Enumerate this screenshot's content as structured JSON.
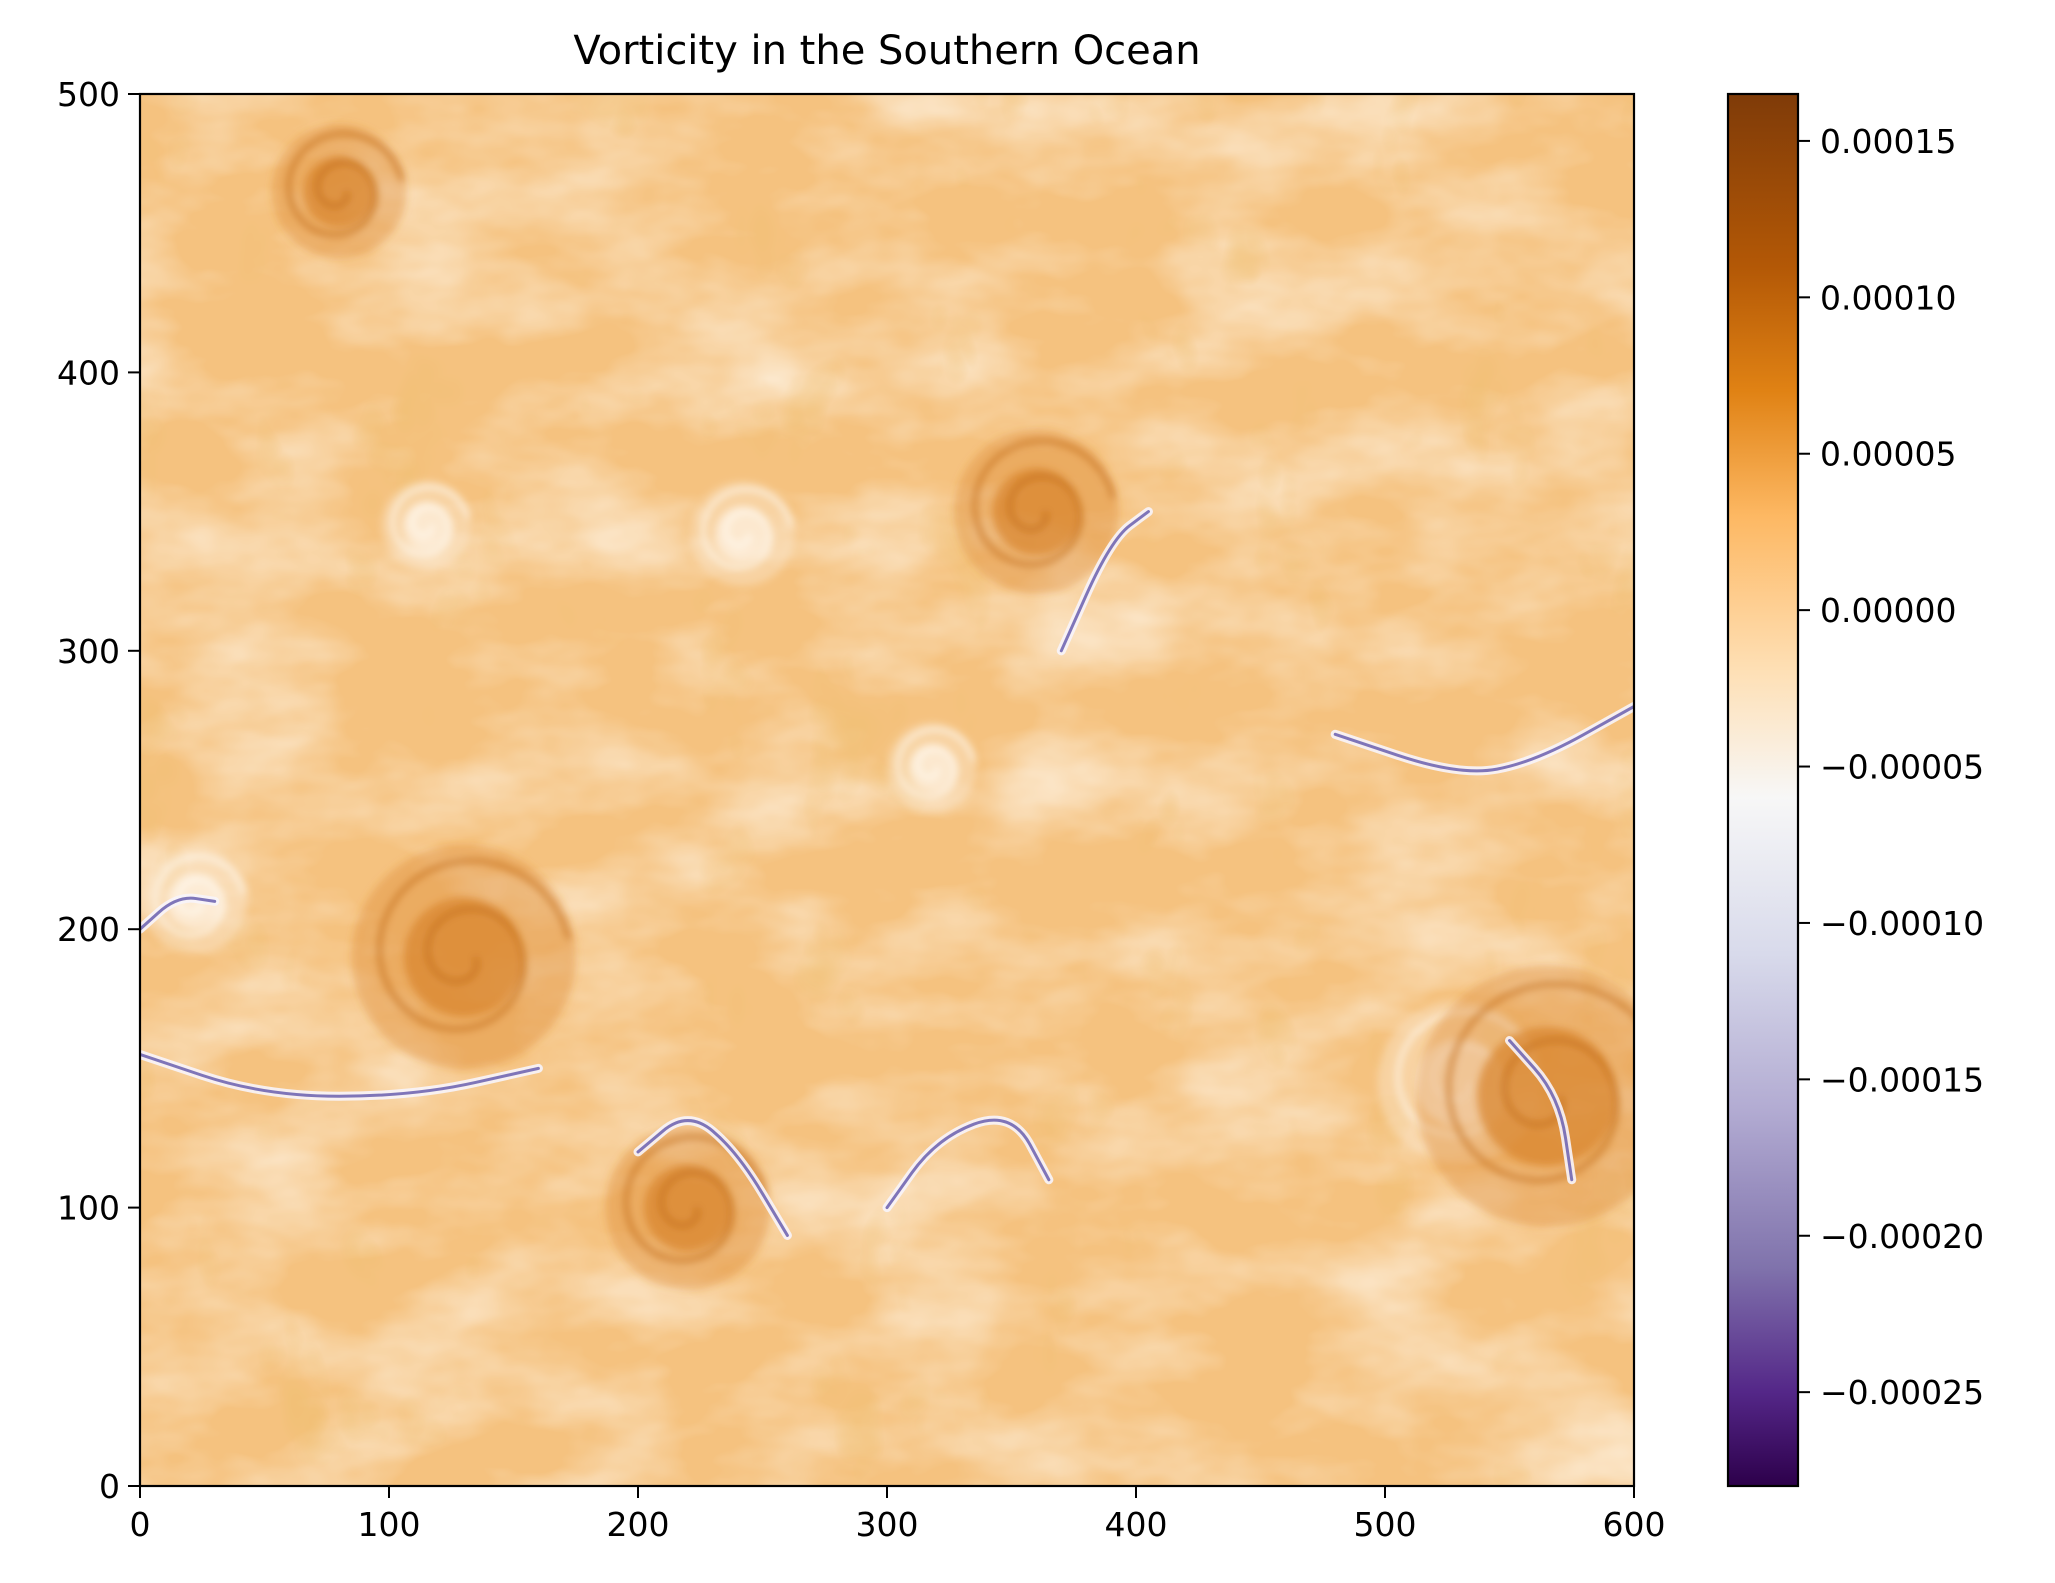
{
  "chart_data": {
    "type": "heatmap",
    "title": "Vorticity in the Southern Ocean",
    "xlabel": "",
    "ylabel": "",
    "xlim": [
      0,
      600
    ],
    "ylim": [
      0,
      500
    ],
    "x_ticks": [
      0,
      100,
      200,
      300,
      400,
      500,
      600
    ],
    "y_ticks": [
      0,
      100,
      200,
      300,
      400,
      500
    ],
    "x_tick_labels": [
      "0",
      "100",
      "200",
      "300",
      "400",
      "500",
      "600"
    ],
    "y_tick_labels": [
      "0",
      "100",
      "200",
      "300",
      "400",
      "500"
    ],
    "colorbar": {
      "colormap": "PuOr_r",
      "range": [
        -0.00028,
        0.000165
      ],
      "ticks": [
        0.00015,
        0.0001,
        5e-05,
        0.0,
        -5e-05,
        -0.0001,
        -0.00015,
        -0.0002,
        -0.00025
      ],
      "tick_labels": [
        "0.00015",
        "0.00010",
        "0.00005",
        "0.00000",
        "−0.00005",
        "−0.00010",
        "−0.00015",
        "−0.00020",
        "−0.00025"
      ],
      "stops": [
        {
          "value": 0.000165,
          "color": "#7f3b08"
        },
        {
          "value": 0.00011,
          "color": "#b35806"
        },
        {
          "value": 7e-05,
          "color": "#e08214"
        },
        {
          "value": 3e-05,
          "color": "#fdb863"
        },
        {
          "value": -2e-05,
          "color": "#fee0b6"
        },
        {
          "value": -6e-05,
          "color": "#f7f7f7"
        },
        {
          "value": -0.00011,
          "color": "#d8daeb"
        },
        {
          "value": -0.00016,
          "color": "#b2abd2"
        },
        {
          "value": -0.00021,
          "color": "#8073ac"
        },
        {
          "value": -0.00025,
          "color": "#542788"
        },
        {
          "value": -0.00028,
          "color": "#2d004b"
        }
      ]
    },
    "field": {
      "background_color": "#f5c27f",
      "features": [
        {
          "kind": "eddy",
          "x": 115,
          "y": 345,
          "r": 12,
          "sign": "light"
        },
        {
          "kind": "eddy",
          "x": 242,
          "y": 342,
          "r": 14,
          "sign": "light"
        },
        {
          "kind": "eddy",
          "x": 318,
          "y": 258,
          "r": 12,
          "sign": "light"
        },
        {
          "kind": "eddy",
          "x": 22,
          "y": 210,
          "r": 14,
          "sign": "light"
        },
        {
          "kind": "eddy",
          "x": 530,
          "y": 145,
          "r": 22,
          "sign": "light"
        },
        {
          "kind": "eddy",
          "x": 565,
          "y": 140,
          "r": 35,
          "sign": "dark"
        },
        {
          "kind": "eddy",
          "x": 130,
          "y": 190,
          "r": 30,
          "sign": "dark"
        },
        {
          "kind": "eddy",
          "x": 220,
          "y": 100,
          "r": 22,
          "sign": "dark"
        },
        {
          "kind": "eddy",
          "x": 360,
          "y": 350,
          "r": 22,
          "sign": "dark"
        },
        {
          "kind": "eddy",
          "x": 80,
          "y": 465,
          "r": 18,
          "sign": "dark"
        }
      ],
      "negative_filaments": [
        [
          [
            0,
            155
          ],
          [
            50,
            140
          ],
          [
            110,
            140
          ],
          [
            160,
            150
          ]
        ],
        [
          [
            200,
            120
          ],
          [
            220,
            135
          ],
          [
            240,
            120
          ],
          [
            260,
            90
          ]
        ],
        [
          [
            300,
            100
          ],
          [
            320,
            125
          ],
          [
            350,
            135
          ],
          [
            365,
            110
          ]
        ],
        [
          [
            370,
            300
          ],
          [
            390,
            340
          ],
          [
            405,
            350
          ]
        ],
        [
          [
            480,
            270
          ],
          [
            530,
            255
          ],
          [
            560,
            260
          ],
          [
            600,
            280
          ]
        ],
        [
          [
            550,
            160
          ],
          [
            570,
            140
          ],
          [
            575,
            110
          ]
        ],
        [
          [
            0,
            200
          ],
          [
            15,
            212
          ],
          [
            30,
            210
          ]
        ]
      ]
    }
  }
}
